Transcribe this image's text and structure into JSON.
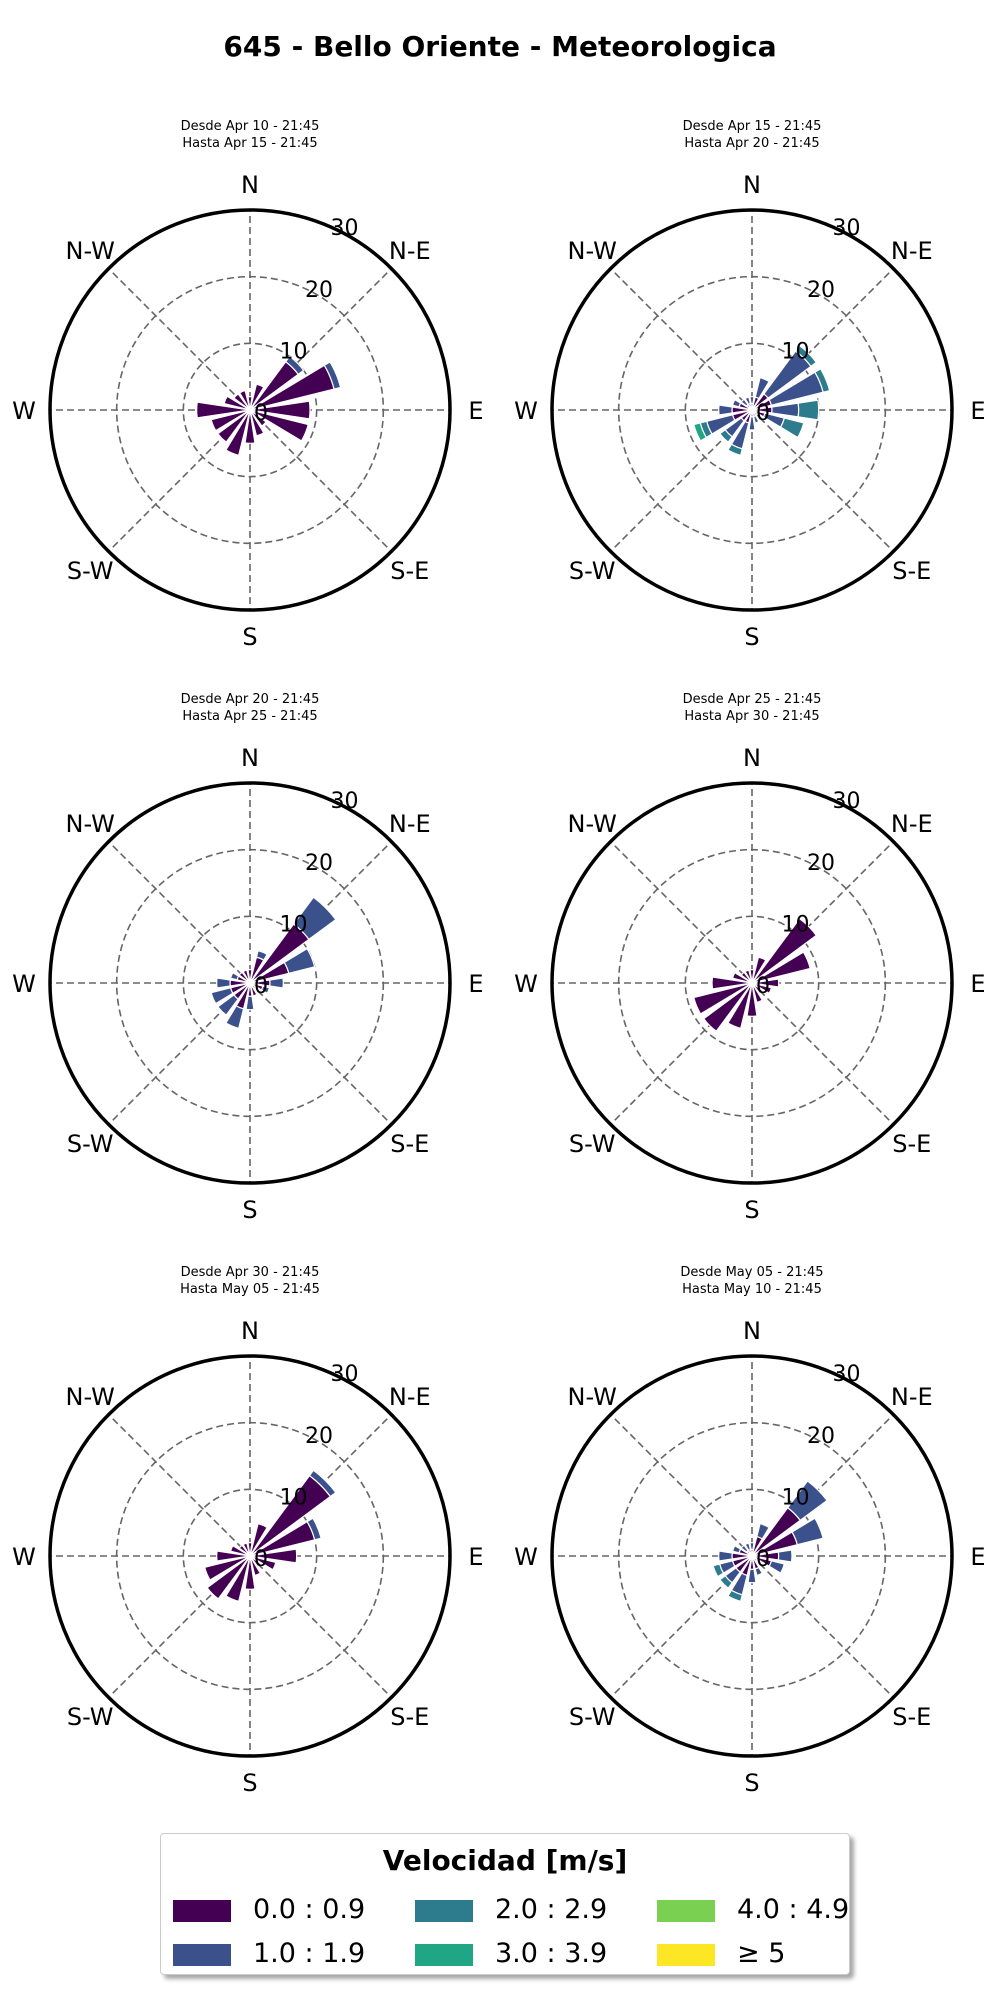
{
  "title": "645 - Bello Oriente - Meteorologica",
  "legend": {
    "title": "Velocidad [m/s]",
    "items": [
      {
        "label": "0.0 : 0.9",
        "color": "#440154"
      },
      {
        "label": "1.0 : 1.9",
        "color": "#3b518b"
      },
      {
        "label": "2.0 : 2.9",
        "color": "#2c7c8e"
      },
      {
        "label": "3.0 : 3.9",
        "color": "#21a685"
      },
      {
        "label": "4.0 : 4.9",
        "color": "#7ad151"
      },
      {
        "label": "≥ 5",
        "color": "#fde725"
      }
    ]
  },
  "chart_data": [
    {
      "type": "windrose",
      "subtitle_1": "Desde Apr 10 - 21:45",
      "subtitle_2": "Hasta Apr 15 - 21:45",
      "directions": [
        "N",
        "NNE",
        "NE",
        "ENE",
        "E",
        "ESE",
        "SE",
        "SSE",
        "S",
        "SSW",
        "SW",
        "WSW",
        "W",
        "WNW",
        "NW",
        "NNW"
      ],
      "compass_labels": [
        "N",
        "N-E",
        "E",
        "S-E",
        "S",
        "S-W",
        "W",
        "N-W"
      ],
      "radial_ticks": [
        0,
        10,
        20,
        30
      ],
      "rlim": [
        0,
        30
      ],
      "series": [
        {
          "bin": "0.0 : 0.9",
          "values": [
            2,
            4,
            9,
            13,
            9,
            9,
            3,
            4,
            5,
            7,
            6,
            6,
            8,
            4,
            3,
            3
          ]
        },
        {
          "bin": "1.0 : 1.9",
          "values": [
            0,
            0,
            1,
            1,
            0,
            0,
            0,
            0,
            0,
            0,
            0,
            0,
            0,
            0,
            0,
            0
          ]
        }
      ]
    },
    {
      "type": "windrose",
      "subtitle_1": "Desde Apr 15 - 21:45",
      "subtitle_2": "Hasta Apr 20 - 21:45",
      "directions": [
        "N",
        "NNE",
        "NE",
        "ENE",
        "E",
        "ESE",
        "SE",
        "SSE",
        "S",
        "SSW",
        "SW",
        "WSW",
        "W",
        "WNW",
        "NW",
        "NNW"
      ],
      "compass_labels": [
        "N",
        "N-E",
        "E",
        "S-E",
        "S",
        "S-W",
        "W",
        "N-W"
      ],
      "radial_ticks": [
        0,
        10,
        20,
        30
      ],
      "rlim": [
        0,
        30
      ],
      "series": [
        {
          "bin": "0.0 : 0.9",
          "values": [
            1,
            2,
            3,
            3,
            3,
            2,
            1,
            1,
            1,
            2,
            2,
            3,
            3,
            2,
            1,
            1
          ]
        },
        {
          "bin": "1.0 : 1.9",
          "values": [
            1,
            3,
            8,
            8,
            4,
            3,
            1,
            1,
            2,
            4,
            3,
            4,
            2,
            1,
            1,
            1
          ]
        },
        {
          "bin": "2.0 : 2.9",
          "values": [
            0,
            0,
            1,
            1,
            3,
            3,
            0,
            0,
            0,
            1,
            1,
            1,
            0,
            0,
            0,
            0
          ]
        },
        {
          "bin": "3.0 : 3.9",
          "values": [
            0,
            0,
            0,
            0,
            0,
            0,
            0,
            0,
            0,
            0,
            0,
            1,
            0,
            0,
            0,
            0
          ]
        }
      ]
    },
    {
      "type": "windrose",
      "subtitle_1": "Desde Apr 20 - 21:45",
      "subtitle_2": "Hasta Apr 25 - 21:45",
      "directions": [
        "N",
        "NNE",
        "NE",
        "ENE",
        "E",
        "ESE",
        "SE",
        "SSE",
        "S",
        "SSW",
        "SW",
        "WSW",
        "W",
        "WNW",
        "NW",
        "NNW"
      ],
      "compass_labels": [
        "N",
        "N-E",
        "E",
        "S-E",
        "S",
        "S-W",
        "W",
        "N-W"
      ],
      "radial_ticks": [
        0,
        10,
        20,
        30
      ],
      "rlim": [
        0,
        30
      ],
      "series": [
        {
          "bin": "0.0 : 0.9",
          "values": [
            2,
            4,
            11,
            6,
            3,
            2,
            1,
            2,
            2,
            4,
            3,
            3,
            3,
            2,
            2,
            2
          ]
        },
        {
          "bin": "1.0 : 1.9",
          "values": [
            0,
            1,
            5,
            4,
            2,
            1,
            0,
            0,
            2,
            3,
            3,
            3,
            2,
            1,
            0,
            0
          ]
        }
      ]
    },
    {
      "type": "windrose",
      "subtitle_1": "Desde Apr 25 - 21:45",
      "subtitle_2": "Hasta Apr 30 - 21:45",
      "directions": [
        "N",
        "NNE",
        "NE",
        "ENE",
        "E",
        "ESE",
        "SE",
        "SSE",
        "S",
        "SSW",
        "SW",
        "WSW",
        "W",
        "WNW",
        "NW",
        "NNW"
      ],
      "compass_labels": [
        "N",
        "N-E",
        "E",
        "S-E",
        "S",
        "S-W",
        "W",
        "N-W"
      ],
      "radial_ticks": [
        0,
        10,
        20,
        30
      ],
      "rlim": [
        0,
        30
      ],
      "series": [
        {
          "bin": "0.0 : 0.9",
          "values": [
            2,
            4,
            12,
            9,
            4,
            3,
            2,
            3,
            5,
            7,
            9,
            9,
            6,
            3,
            2,
            2
          ]
        },
        {
          "bin": "1.0 : 1.9",
          "values": [
            0,
            0,
            0,
            0,
            0,
            0,
            0,
            0,
            0,
            0,
            0,
            0,
            0,
            0,
            0,
            0
          ]
        }
      ]
    },
    {
      "type": "windrose",
      "subtitle_1": "Desde Apr 30 - 21:45",
      "subtitle_2": "Hasta May 05 - 21:45",
      "directions": [
        "N",
        "NNE",
        "NE",
        "ENE",
        "E",
        "ESE",
        "SE",
        "SSE",
        "S",
        "SSW",
        "SW",
        "WSW",
        "W",
        "WNW",
        "NW",
        "NNW"
      ],
      "compass_labels": [
        "N",
        "N-E",
        "E",
        "S-E",
        "S",
        "S-W",
        "W",
        "N-W"
      ],
      "radial_ticks": [
        0,
        10,
        20,
        30
      ],
      "rlim": [
        0,
        30
      ],
      "series": [
        {
          "bin": "0.0 : 0.9",
          "values": [
            2,
            5,
            15,
            10,
            7,
            4,
            2,
            3,
            5,
            7,
            8,
            7,
            5,
            3,
            2,
            2
          ]
        },
        {
          "bin": "1.0 : 1.9",
          "values": [
            0,
            0,
            1,
            1,
            0,
            0,
            0,
            0,
            0,
            0,
            0,
            0,
            0,
            0,
            0,
            0
          ]
        }
      ]
    },
    {
      "type": "windrose",
      "subtitle_1": "Desde May 05 - 21:45",
      "subtitle_2": "Hasta May 10 - 21:45",
      "directions": [
        "N",
        "NNE",
        "NE",
        "ENE",
        "E",
        "ESE",
        "SE",
        "SSE",
        "S",
        "SSW",
        "SW",
        "WSW",
        "W",
        "WNW",
        "NW",
        "NNW"
      ],
      "compass_labels": [
        "N",
        "N-E",
        "E",
        "S-E",
        "S",
        "S-W",
        "W",
        "N-W"
      ],
      "radial_ticks": [
        0,
        10,
        20,
        30
      ],
      "rlim": [
        0,
        30
      ],
      "series": [
        {
          "bin": "0.0 : 0.9",
          "values": [
            1,
            3,
            9,
            7,
            4,
            3,
            1,
            2,
            2,
            3,
            3,
            3,
            3,
            2,
            1,
            1
          ]
        },
        {
          "bin": "1.0 : 1.9",
          "values": [
            1,
            2,
            5,
            4,
            2,
            2,
            0,
            1,
            2,
            3,
            2,
            2,
            2,
            1,
            1,
            1
          ]
        },
        {
          "bin": "2.0 : 2.9",
          "values": [
            0,
            0,
            0,
            0,
            0,
            0,
            0,
            0,
            0,
            1,
            1,
            1,
            0,
            0,
            0,
            0
          ]
        }
      ]
    }
  ]
}
